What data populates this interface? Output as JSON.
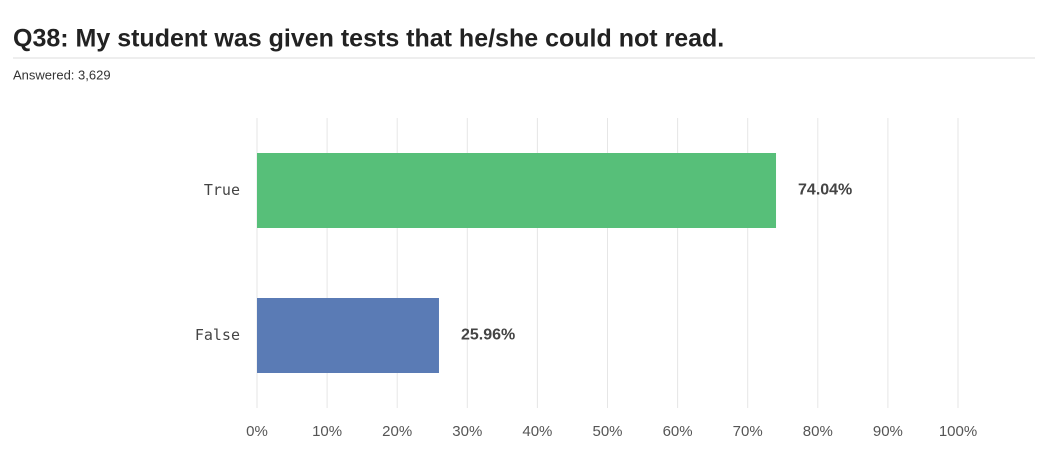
{
  "chart_data": {
    "type": "hbar",
    "title": "Q38: My student was given tests that he/she could not read.",
    "subtitle": "Answered: 3,629",
    "categories": [
      "True",
      "False"
    ],
    "values": [
      74.04,
      25.96
    ],
    "value_labels": [
      "74.04%",
      "25.96%"
    ],
    "colors": [
      "#57bf79",
      "#5a7bb5"
    ],
    "xlim": [
      0,
      100
    ],
    "xticks": [
      {
        "value": 0,
        "label": "0%"
      },
      {
        "value": 10,
        "label": "10%"
      },
      {
        "value": 20,
        "label": "20%"
      },
      {
        "value": 30,
        "label": "30%"
      },
      {
        "value": 40,
        "label": "40%"
      },
      {
        "value": 50,
        "label": "50%"
      },
      {
        "value": 60,
        "label": "60%"
      },
      {
        "value": 70,
        "label": "70%"
      },
      {
        "value": 80,
        "label": "80%"
      },
      {
        "value": 90,
        "label": "90%"
      },
      {
        "value": 100,
        "label": "100%"
      }
    ],
    "grid": true
  }
}
